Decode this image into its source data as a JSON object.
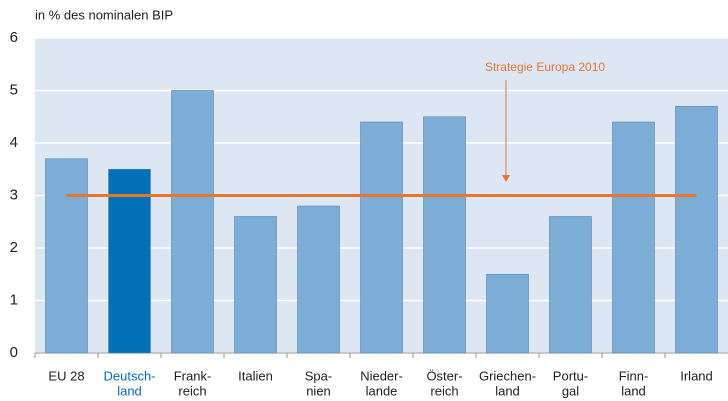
{
  "chart_data": {
    "type": "bar",
    "y_label": "in % des nominalen BIP",
    "categories": [
      [
        "EU 28"
      ],
      [
        "Deutsch-",
        "land"
      ],
      [
        "Frank-",
        "reich"
      ],
      [
        "Italien"
      ],
      [
        "Spa-",
        "nien"
      ],
      [
        "Nieder-",
        "lande"
      ],
      [
        "Öster-",
        "reich"
      ],
      [
        "Griechen-",
        "land"
      ],
      [
        "Portu-",
        "gal"
      ],
      [
        "Finn-",
        "land"
      ],
      [
        "Irland"
      ]
    ],
    "values": [
      3.7,
      3.5,
      5.0,
      2.6,
      2.8,
      4.4,
      4.5,
      1.5,
      2.6,
      4.4,
      4.7
    ],
    "color": "#7badd6",
    "highlight_index": 1,
    "highlight_color": "#0070b8",
    "reference": {
      "value": 3,
      "label": "Strategie Europa 2010",
      "color": "#e8772e"
    },
    "ylim": [
      0,
      6
    ],
    "yticks": [
      0,
      1,
      2,
      3,
      4,
      5,
      6
    ],
    "grid": true
  }
}
